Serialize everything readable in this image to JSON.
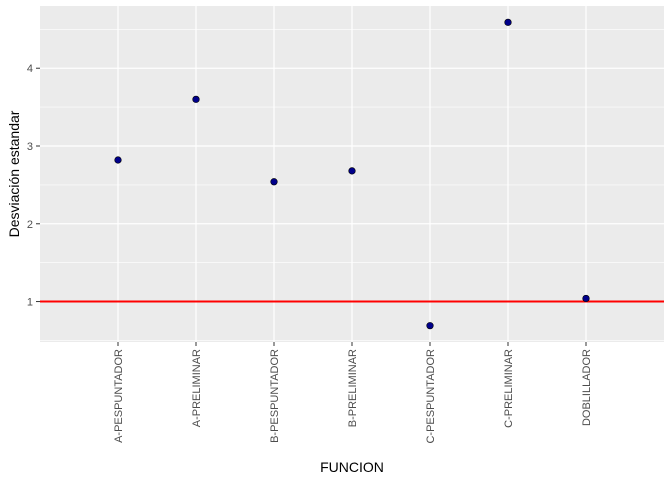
{
  "chart_data": {
    "type": "scatter",
    "xlabel": "FUNCION",
    "ylabel": "Desviación estandar",
    "categories": [
      "A-PESPUNTADOR",
      "A-PRELIMINAR",
      "B-PESPUNTADOR",
      "B-PRELIMINAR",
      "C-PESPUNTADOR",
      "C-PRELIMINAR",
      "DOBLILLADOR"
    ],
    "values": [
      2.82,
      3.6,
      2.54,
      2.68,
      0.69,
      4.59,
      1.04
    ],
    "ylim": [
      0.48,
      4.8
    ],
    "yticks": [
      1,
      2,
      3,
      4
    ],
    "reference_line": {
      "y": 1,
      "color": "#ff0000"
    },
    "point_color": "#00008b",
    "panel_background": "#ebebeb",
    "grid": true,
    "legend": "none"
  }
}
